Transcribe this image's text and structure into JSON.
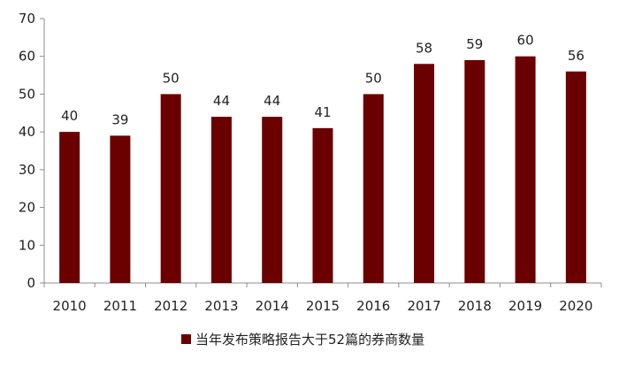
{
  "chart_data": {
    "type": "bar",
    "title": "",
    "xlabel": "",
    "ylabel": "",
    "categories": [
      "2010",
      "2011",
      "2012",
      "2013",
      "2014",
      "2015",
      "2016",
      "2017",
      "2018",
      "2019",
      "2020"
    ],
    "series": [
      {
        "name": "当年发布策略报告大于52篇的券商数量",
        "values": [
          40,
          39,
          50,
          44,
          44,
          41,
          50,
          58,
          59,
          60,
          56
        ],
        "color": "#6b0000"
      }
    ],
    "ylim": [
      0,
      70
    ],
    "yticks": [
      0,
      10,
      20,
      30,
      40,
      50,
      60,
      70
    ],
    "data_labels": true,
    "grid": false,
    "legend_position": "bottom-center"
  }
}
